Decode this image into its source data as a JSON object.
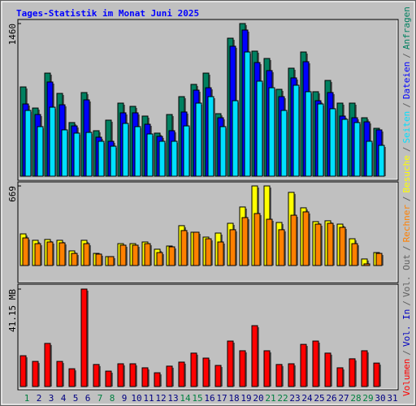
{
  "chart_data": [
    {
      "type": "bar",
      "title": "Tages-Statistik im Monat Juni 2025",
      "ylim": [
        0,
        1460
      ],
      "yticks": [
        1460
      ],
      "series": [
        {
          "name": "Anfragen",
          "color": "#008060",
          "values": [
            854,
            652,
            986,
            792,
            513,
            800,
            435,
            536,
            699,
            668,
            575,
            412,
            590,
            761,
            878,
            986,
            598,
            1320,
            1460,
            1196,
            1126,
            831,
            1033,
            1188,
            808,
            916,
            699,
            699,
            559,
            458,
            null
          ]
        },
        {
          "name": "Dateien",
          "color": "#0000ff",
          "values": [
            691,
            590,
            901,
            683,
            481,
            730,
            373,
            334,
            606,
            606,
            497,
            381,
            435,
            614,
            823,
            846,
            559,
            1243,
            1398,
            1087,
            1010,
            761,
            940,
            1095,
            722,
            800,
            575,
            559,
            520,
            443,
            null
          ]
        },
        {
          "name": "Seiten",
          "color": "#00e0ff",
          "values": [
            629,
            474,
            660,
            443,
            412,
            419,
            334,
            287,
            505,
            474,
            404,
            334,
            334,
            481,
            699,
            761,
            474,
            722,
            1188,
            909,
            846,
            629,
            870,
            808,
            691,
            645,
            544,
            513,
            334,
            295,
            null
          ]
        }
      ]
    },
    {
      "type": "bar",
      "ylim": [
        0,
        669
      ],
      "yticks": [
        669
      ],
      "series": [
        {
          "name": "Besuche",
          "color": "#ffff00",
          "values": [
            266,
            212,
            219,
            212,
            123,
            212,
            102,
            75,
            184,
            184,
            198,
            137,
            164,
            335,
            280,
            239,
            273,
            355,
            492,
            669,
            669,
            362,
            615,
            485,
            369,
            376,
            348,
            225,
            55,
            109,
            null
          ]
        },
        {
          "name": "Rechner",
          "color": "#ff8000",
          "values": [
            232,
            184,
            198,
            191,
            102,
            184,
            96,
            75,
            171,
            171,
            184,
            109,
            157,
            294,
            280,
            225,
            198,
            301,
            403,
            437,
            389,
            301,
            423,
            451,
            348,
            355,
            321,
            184,
            14,
            102,
            null
          ]
        }
      ]
    },
    {
      "type": "bar",
      "ylim": [
        0,
        41.15
      ],
      "yticks": [
        {
          "value": 41.15,
          "label": "41.15 MB"
        }
      ],
      "categories": [
        "1",
        "2",
        "3",
        "4",
        "5",
        "6",
        "7",
        "8",
        "9",
        "10",
        "11",
        "12",
        "13",
        "14",
        "15",
        "16",
        "17",
        "18",
        "19",
        "20",
        "21",
        "22",
        "23",
        "24",
        "25",
        "26",
        "27",
        "28",
        "29",
        "30",
        "31"
      ],
      "category_colors": [
        "#008040",
        "#000080",
        "#000080",
        "#000080",
        "#000080",
        "#000080",
        "#008040",
        "#008040",
        "#000080",
        "#000080",
        "#000080",
        "#000080",
        "#000080",
        "#008040",
        "#008040",
        "#000080",
        "#000080",
        "#000080",
        "#000080",
        "#000080",
        "#008040",
        "#008040",
        "#000080",
        "#000080",
        "#000080",
        "#000080",
        "#000080",
        "#008040",
        "#008040",
        "#000080",
        "#000080"
      ],
      "series": [
        {
          "name": "Volumen",
          "color": "#ff0000",
          "values": [
            13.0,
            10.6,
            18.2,
            10.6,
            7.5,
            41.15,
            9.3,
            6.5,
            9.6,
            9.6,
            7.9,
            5.8,
            8.6,
            10.3,
            14.1,
            12.0,
            8.9,
            19.2,
            15.1,
            25.7,
            15.1,
            9.3,
            9.6,
            17.8,
            19.2,
            14.1,
            7.9,
            11.7,
            15.1,
            9.9,
            null
          ]
        }
      ],
      "extra_legend": [
        {
          "name": "Vol. In",
          "color": "#0000c0"
        },
        {
          "name": "Vol. Out",
          "color": "#606060"
        }
      ],
      "legend_separator": "/"
    }
  ]
}
